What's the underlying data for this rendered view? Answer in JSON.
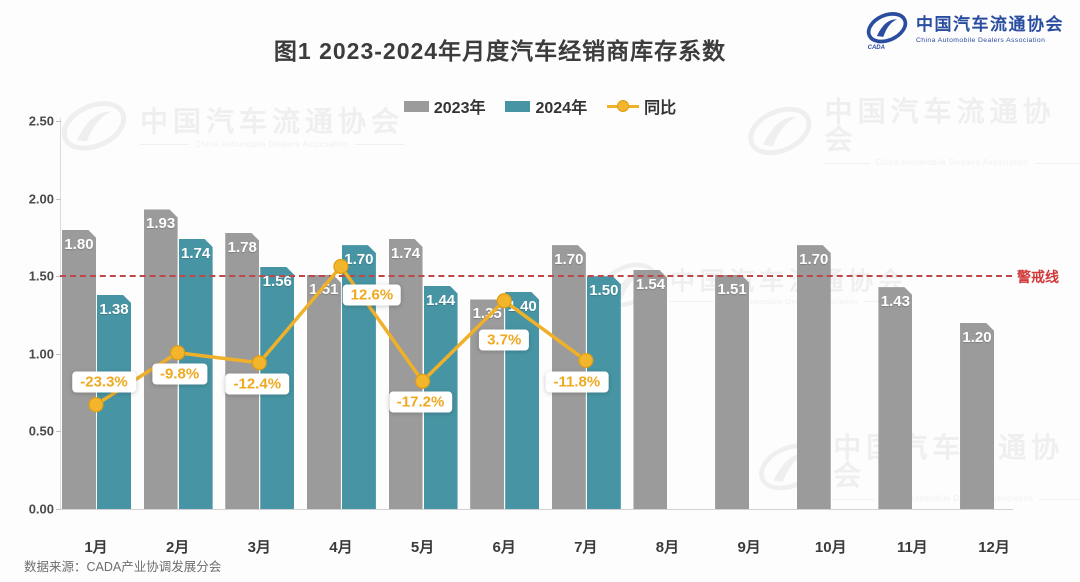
{
  "title": "图1  2023-2024年月度汽车经销商库存系数",
  "logo": {
    "cn": "中国汽车流通协会",
    "en": "China Automobile Dealers Association",
    "color": "#2a4da0"
  },
  "legend": [
    {
      "label": "2023年",
      "swatch": "#9b9b9b",
      "type": "bar"
    },
    {
      "label": "2024年",
      "swatch": "#4795a4",
      "type": "bar"
    },
    {
      "label": "同比",
      "swatch": "#efb02a",
      "type": "line-marker"
    }
  ],
  "watermark": {
    "cn": "中国汽车流通协会",
    "en": "China Automobile Dealers Association"
  },
  "source": "数据来源：CADA产业协调发展分会",
  "chart_data": {
    "type": "bar",
    "subtype": "grouped bars + line overlay (combo)",
    "title": "图1  2023-2024年月度汽车经销商库存系数",
    "categories": [
      "1月",
      "2月",
      "3月",
      "4月",
      "5月",
      "6月",
      "7月",
      "8月",
      "9月",
      "10月",
      "11月",
      "12月"
    ],
    "series": [
      {
        "name": "2023年",
        "type": "bar",
        "color": "#9b9b9b",
        "values": [
          1.8,
          1.93,
          1.78,
          1.51,
          1.74,
          1.35,
          1.7,
          1.54,
          1.51,
          1.7,
          1.43,
          1.2
        ]
      },
      {
        "name": "2024年",
        "type": "bar",
        "color": "#4795a4",
        "values": [
          1.38,
          1.74,
          1.56,
          1.7,
          1.44,
          1.4,
          1.5
        ]
      },
      {
        "name": "同比",
        "type": "line",
        "color": "#efb02a",
        "values": [
          -23.3,
          -9.8,
          -12.4,
          12.6,
          -17.2,
          3.7,
          -11.8
        ],
        "labels": [
          "-23.3%",
          "-9.8%",
          "-12.4%",
          "12.6%",
          "-17.2%",
          "3.7%",
          "-11.8%"
        ]
      }
    ],
    "y_axis": {
      "min": 0,
      "max": 2.5,
      "tick_step": 0.5,
      "tick_labels": [
        "0.00",
        "0.50",
        "1.00",
        "1.50",
        "2.00",
        "2.50"
      ]
    },
    "warning_line": {
      "value": 1.5,
      "label": "警戒线",
      "color": "#d03a3a",
      "style": "dashed"
    },
    "xlabel": "",
    "ylabel": "",
    "legend_position": "top",
    "grid": false,
    "value_labels": "on bars, white bold, two decimals",
    "source": "数据来源：CADA产业协调发展分会"
  }
}
